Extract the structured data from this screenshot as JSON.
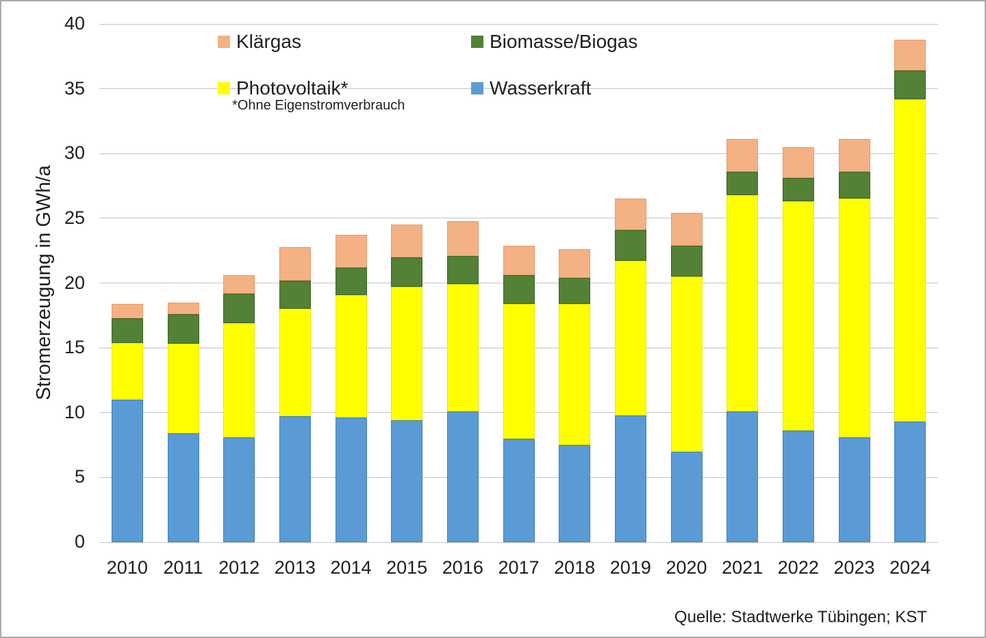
{
  "chart_data": {
    "type": "bar",
    "stacked": true,
    "title": "",
    "xlabel": "",
    "ylabel": "Stromerzeugung in GWh/a",
    "ylim": [
      0,
      40
    ],
    "yticks": [
      0,
      5,
      10,
      15,
      20,
      25,
      30,
      35,
      40
    ],
    "grid": true,
    "legend_position": "top",
    "categories": [
      "2010",
      "2011",
      "2012",
      "2013",
      "2014",
      "2015",
      "2016",
      "2017",
      "2018",
      "2019",
      "2020",
      "2021",
      "2022",
      "2023",
      "2024"
    ],
    "series": [
      {
        "name": "Wasserkraft",
        "color": "#5B9BD5",
        "border": "#3F7DBB",
        "values": [
          11.0,
          8.4,
          8.1,
          9.7,
          9.6,
          9.4,
          10.1,
          8.0,
          7.5,
          9.8,
          7.0,
          10.1,
          8.6,
          8.1,
          9.3
        ]
      },
      {
        "name": "Photovoltaik*",
        "color": "#FFFF00",
        "border": "#E8E800",
        "values": [
          4.4,
          6.9,
          8.8,
          8.3,
          9.5,
          10.3,
          9.8,
          10.4,
          10.9,
          11.9,
          13.5,
          16.7,
          17.7,
          18.4,
          24.9
        ]
      },
      {
        "name": "Biomasse/Biogas",
        "color": "#538135",
        "border": "#3D6127",
        "values": [
          1.9,
          2.3,
          2.3,
          2.2,
          2.1,
          2.3,
          2.2,
          2.2,
          2.0,
          2.4,
          2.4,
          1.8,
          1.8,
          2.1,
          2.2
        ]
      },
      {
        "name": "Klärgas",
        "color": "#F4B183",
        "border": "#E79B6C",
        "values": [
          1.1,
          0.9,
          1.4,
          2.6,
          2.5,
          2.5,
          2.7,
          2.3,
          2.2,
          2.4,
          2.5,
          2.5,
          2.4,
          2.5,
          2.4
        ]
      }
    ],
    "legend": {
      "items": [
        {
          "label": "Klärgas",
          "color": "#F4B183"
        },
        {
          "label": "Biomasse/Biogas",
          "color": "#538135"
        },
        {
          "label": "Photovoltaik*",
          "color": "#FFFF00"
        },
        {
          "label": "Wasserkraft",
          "color": "#5B9BD5"
        }
      ]
    },
    "footnote": "*Ohne Eigenstromverbrauch",
    "source": "Quelle: Stadtwerke Tübingen; KST"
  }
}
